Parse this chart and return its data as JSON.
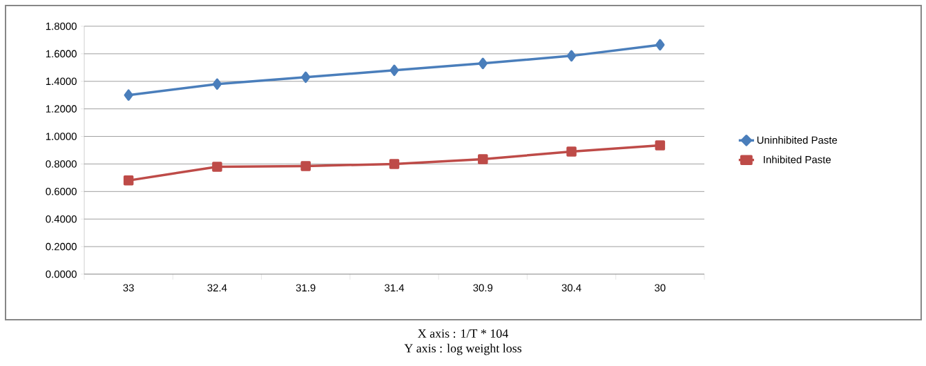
{
  "chart_data": {
    "type": "line",
    "categories": [
      "33",
      "32.4",
      "31.9",
      "31.4",
      "30.9",
      "30.4",
      "30"
    ],
    "series": [
      {
        "name": "Uninhibited Paste",
        "color": "#4a7ebb",
        "marker": "diamond",
        "values": [
          1.3,
          1.38,
          1.43,
          1.48,
          1.53,
          1.585,
          1.665
        ]
      },
      {
        "name": "Inhibited Paste",
        "color": "#be4b48",
        "marker": "square",
        "values": [
          0.68,
          0.78,
          0.785,
          0.8,
          0.835,
          0.89,
          0.935
        ]
      }
    ],
    "ylim": [
      0,
      1.8
    ],
    "yticks": [
      {
        "value": 0,
        "label": "0.0000"
      },
      {
        "value": 0.2,
        "label": "0.2000"
      },
      {
        "value": 0.4,
        "label": "0.4000"
      },
      {
        "value": 0.6,
        "label": "0.6000"
      },
      {
        "value": 0.8,
        "label": "0.8000"
      },
      {
        "value": 1.0,
        "label": "1.0000"
      },
      {
        "value": 1.2,
        "label": "1.2000"
      },
      {
        "value": 1.4,
        "label": "1.4000"
      },
      {
        "value": 1.6,
        "label": "1.6000"
      },
      {
        "value": 1.8,
        "label": "1.8000"
      }
    ],
    "grid": "y",
    "legend": "right",
    "line_style": "solid",
    "annotations": [
      "X axis : 1/T * 104",
      "Y axis : log weight loss"
    ]
  }
}
